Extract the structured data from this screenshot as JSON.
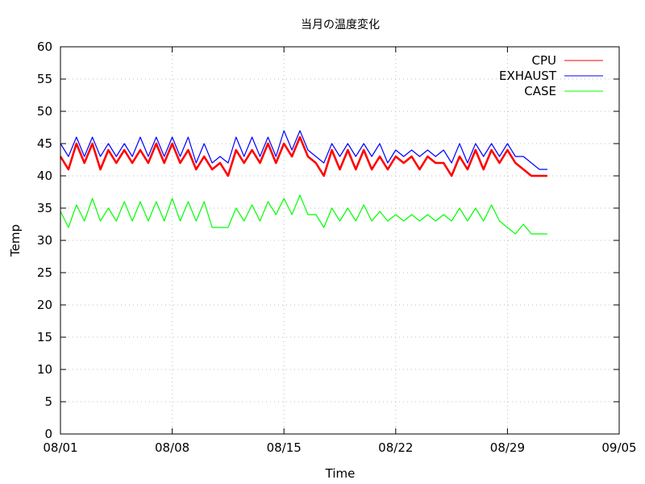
{
  "chart_data": {
    "type": "line",
    "title": "当月の温度変化",
    "xlabel": "Time",
    "ylabel": "Temp",
    "xlim": [
      "08/01",
      "09/05"
    ],
    "ylim": [
      0,
      60
    ],
    "yticks": [
      0,
      5,
      10,
      15,
      20,
      25,
      30,
      35,
      40,
      45,
      50,
      55,
      60
    ],
    "xticks": [
      "08/01",
      "08/08",
      "08/15",
      "08/22",
      "08/29",
      "09/05"
    ],
    "grid": true,
    "legend": "top-right",
    "series": [
      {
        "name": "CPU",
        "color": "#ff0000",
        "x": [
          "08/01",
          "08/01 12:00",
          "08/02",
          "08/02 12:00",
          "08/03",
          "08/03 12:00",
          "08/04",
          "08/04 12:00",
          "08/05",
          "08/05 12:00",
          "08/06",
          "08/06 12:00",
          "08/07",
          "08/07 12:00",
          "08/08",
          "08/08 12:00",
          "08/09",
          "08/09 12:00",
          "08/10",
          "08/10 12:00",
          "08/11",
          "08/11 12:00",
          "08/12",
          "08/12 12:00",
          "08/13",
          "08/13 12:00",
          "08/14",
          "08/14 12:00",
          "08/15",
          "08/15 12:00",
          "08/16",
          "08/16 12:00",
          "08/17",
          "08/17 12:00",
          "08/18",
          "08/18 12:00",
          "08/19",
          "08/19 12:00",
          "08/20",
          "08/20 12:00",
          "08/21",
          "08/21 12:00",
          "08/22",
          "08/22 12:00",
          "08/23",
          "08/23 12:00",
          "08/24",
          "08/24 12:00",
          "08/25",
          "08/25 12:00",
          "08/26",
          "08/26 12:00",
          "08/27",
          "08/27 12:00",
          "08/28",
          "08/28 12:00",
          "08/29",
          "08/29 12:00",
          "08/30",
          "08/30 12:00",
          "08/31",
          "08/31 12:00"
        ],
        "y": [
          43,
          41,
          45,
          42,
          45,
          41,
          44,
          42,
          44,
          42,
          44,
          42,
          45,
          42,
          45,
          42,
          44,
          41,
          43,
          41,
          42,
          40,
          44,
          42,
          44,
          42,
          45,
          42,
          45,
          43,
          46,
          43,
          42,
          40,
          44,
          41,
          44,
          41,
          44,
          41,
          43,
          41,
          43,
          42,
          43,
          41,
          43,
          42,
          42,
          40,
          43,
          41,
          44,
          41,
          44,
          42,
          44,
          42,
          41,
          40,
          40,
          40
        ]
      },
      {
        "name": "EXHAUST",
        "color": "#0000ff",
        "x": [
          "08/01",
          "08/01 12:00",
          "08/02",
          "08/02 12:00",
          "08/03",
          "08/03 12:00",
          "08/04",
          "08/04 12:00",
          "08/05",
          "08/05 12:00",
          "08/06",
          "08/06 12:00",
          "08/07",
          "08/07 12:00",
          "08/08",
          "08/08 12:00",
          "08/09",
          "08/09 12:00",
          "08/10",
          "08/10 12:00",
          "08/11",
          "08/11 12:00",
          "08/12",
          "08/12 12:00",
          "08/13",
          "08/13 12:00",
          "08/14",
          "08/14 12:00",
          "08/15",
          "08/15 12:00",
          "08/16",
          "08/16 12:00",
          "08/17",
          "08/17 12:00",
          "08/18",
          "08/18 12:00",
          "08/19",
          "08/19 12:00",
          "08/20",
          "08/20 12:00",
          "08/21",
          "08/21 12:00",
          "08/22",
          "08/22 12:00",
          "08/23",
          "08/23 12:00",
          "08/24",
          "08/24 12:00",
          "08/25",
          "08/25 12:00",
          "08/26",
          "08/26 12:00",
          "08/27",
          "08/27 12:00",
          "08/28",
          "08/28 12:00",
          "08/29",
          "08/29 12:00",
          "08/30",
          "08/30 12:00",
          "08/31",
          "08/31 12:00"
        ],
        "y": [
          45,
          43,
          46,
          43,
          46,
          43,
          45,
          43,
          45,
          43,
          46,
          43,
          46,
          43,
          46,
          43,
          46,
          42,
          45,
          42,
          43,
          42,
          46,
          43,
          46,
          43,
          46,
          43,
          47,
          44,
          47,
          44,
          43,
          42,
          45,
          43,
          45,
          43,
          45,
          43,
          45,
          42,
          44,
          43,
          44,
          43,
          44,
          43,
          44,
          42,
          45,
          42,
          45,
          43,
          45,
          43,
          45,
          43,
          43,
          42,
          41,
          41
        ]
      },
      {
        "name": "CASE",
        "color": "#00ff00",
        "x": [
          "08/01",
          "08/01 12:00",
          "08/02",
          "08/02 12:00",
          "08/03",
          "08/03 12:00",
          "08/04",
          "08/04 12:00",
          "08/05",
          "08/05 12:00",
          "08/06",
          "08/06 12:00",
          "08/07",
          "08/07 12:00",
          "08/08",
          "08/08 12:00",
          "08/09",
          "08/09 12:00",
          "08/10",
          "08/10 12:00",
          "08/11",
          "08/11 12:00",
          "08/12",
          "08/12 12:00",
          "08/13",
          "08/13 12:00",
          "08/14",
          "08/14 12:00",
          "08/15",
          "08/15 12:00",
          "08/16",
          "08/16 12:00",
          "08/17",
          "08/17 12:00",
          "08/18",
          "08/18 12:00",
          "08/19",
          "08/19 12:00",
          "08/20",
          "08/20 12:00",
          "08/21",
          "08/21 12:00",
          "08/22",
          "08/22 12:00",
          "08/23",
          "08/23 12:00",
          "08/24",
          "08/24 12:00",
          "08/25",
          "08/25 12:00",
          "08/26",
          "08/26 12:00",
          "08/27",
          "08/27 12:00",
          "08/28",
          "08/28 12:00",
          "08/29",
          "08/29 12:00",
          "08/30",
          "08/30 12:00",
          "08/31",
          "08/31 12:00"
        ],
        "y": [
          34.5,
          32,
          35.5,
          33,
          36.5,
          33,
          35,
          33,
          36,
          33,
          36,
          33,
          36,
          33,
          36.5,
          33,
          36,
          33,
          36,
          32,
          32,
          32,
          35,
          33,
          35.5,
          33,
          36,
          34,
          36.5,
          34,
          37,
          34,
          34,
          32,
          35,
          33,
          35,
          33,
          35.5,
          33,
          34.5,
          33,
          34,
          33,
          34,
          33,
          34,
          33,
          34,
          33,
          35,
          33,
          35,
          33,
          35.5,
          33,
          32,
          31,
          32.5,
          31,
          31,
          31
        ]
      }
    ]
  }
}
